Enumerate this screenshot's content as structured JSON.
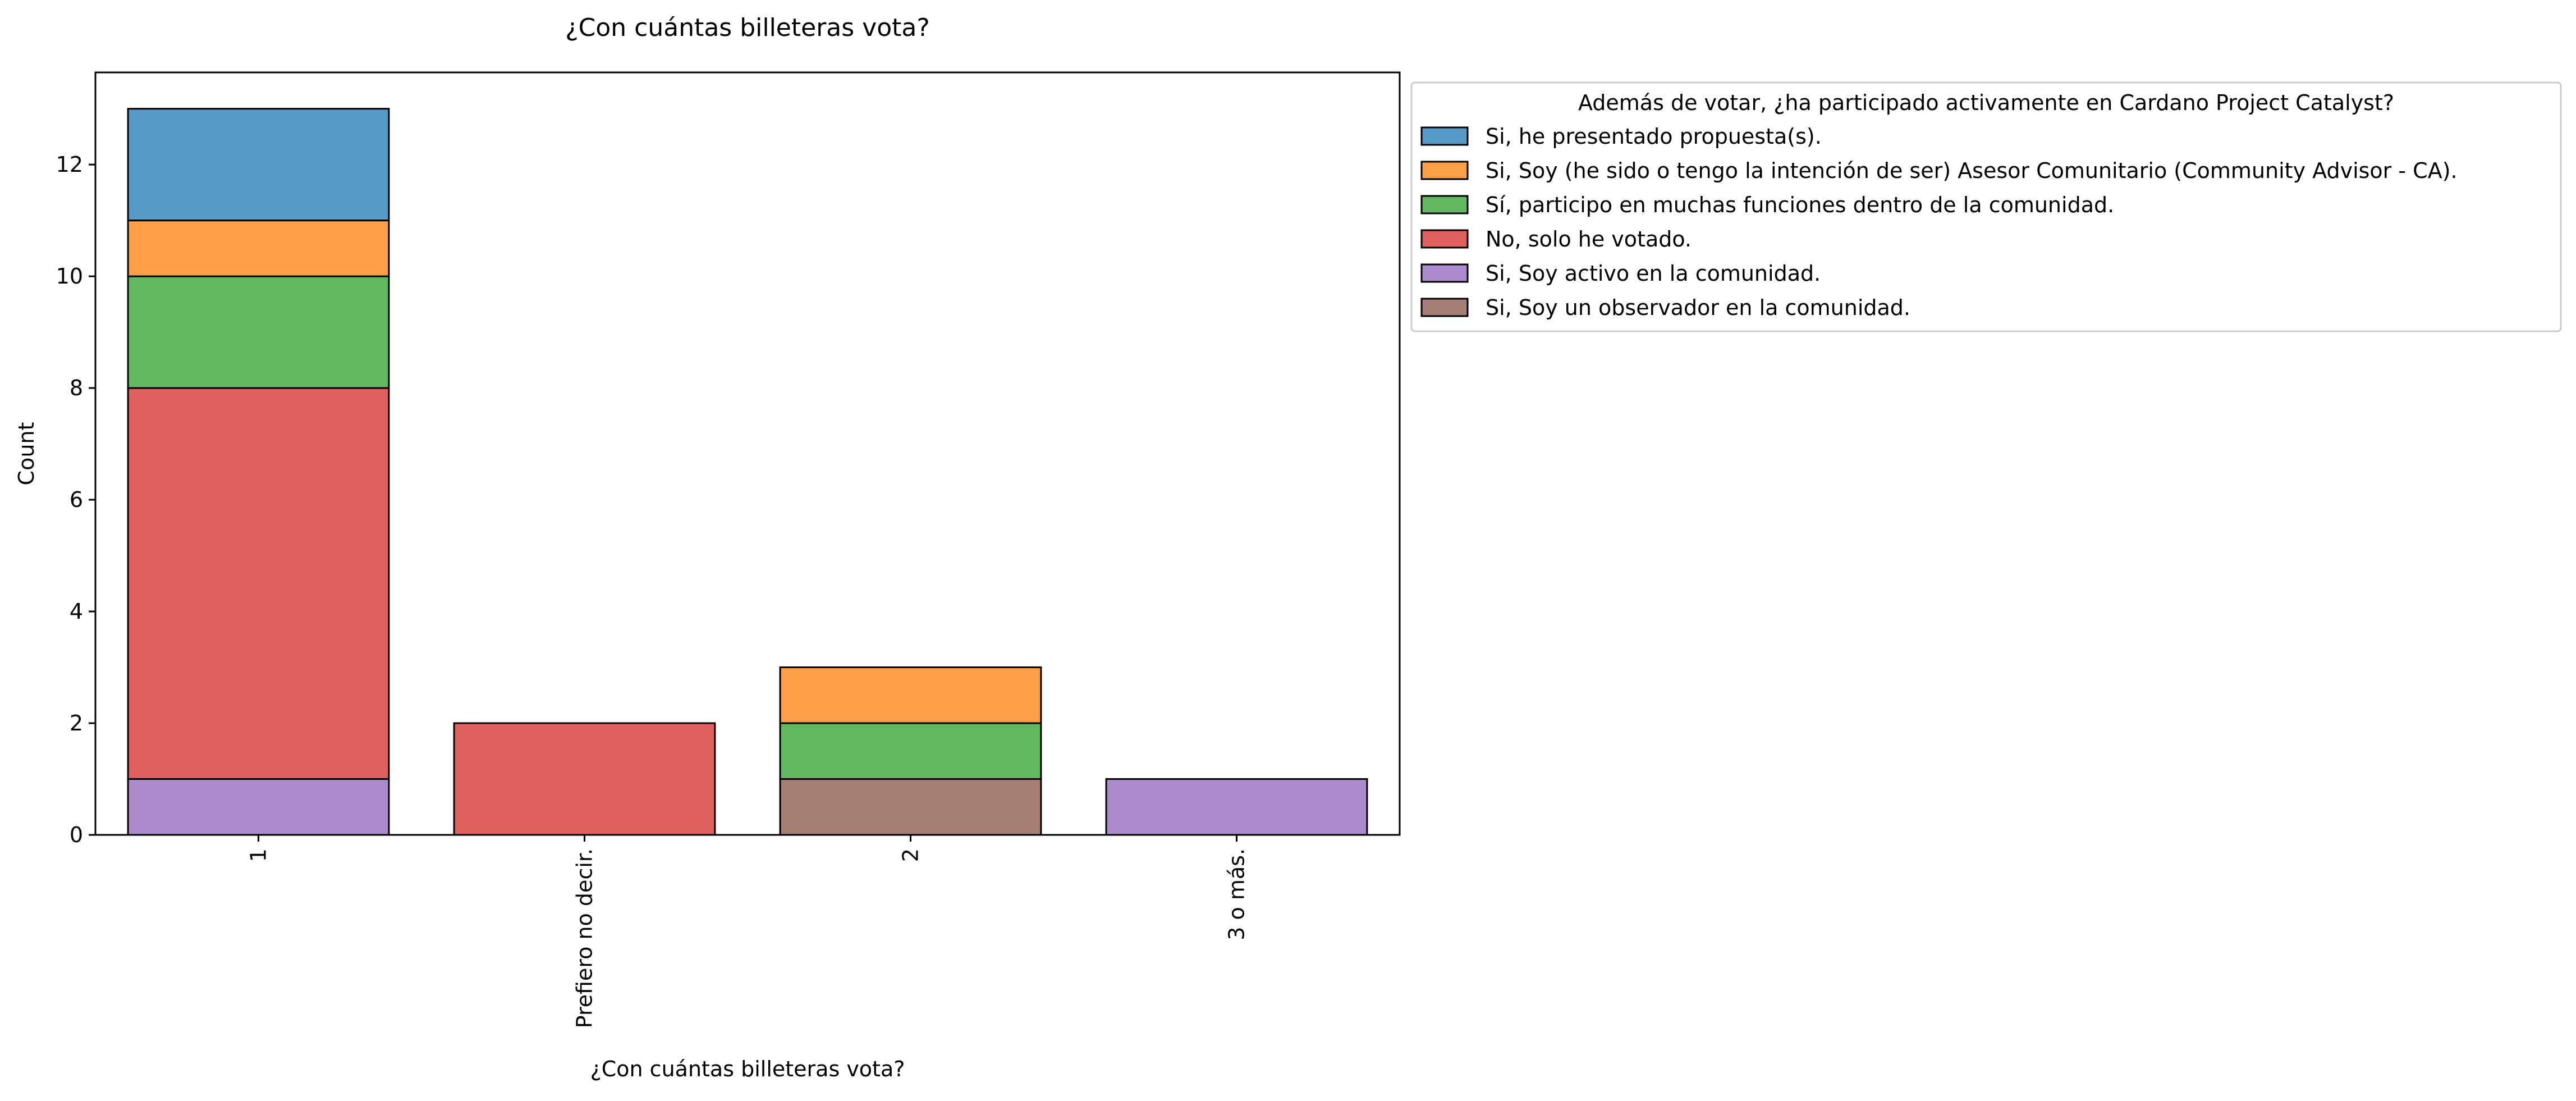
{
  "chart_data": {
    "type": "bar",
    "stacked": true,
    "title": "¿Con cuántas billeteras vota?",
    "xlabel": "¿Con cuántas billeteras vota?",
    "ylabel": "Count",
    "categories": [
      "1",
      "Prefiero no decir.",
      "2",
      "3 o más."
    ],
    "ylim": [
      0,
      13.65
    ],
    "yticks": [
      0,
      2,
      4,
      6,
      8,
      10,
      12
    ],
    "grid": false,
    "legend": {
      "placement": "outside-top-right",
      "title": "Además de votar, ¿ha participado activamente en Cardano Project Catalyst?"
    },
    "stack_order": [
      "Si, Soy un observador en la comunidad.",
      "Si, Soy activo en la comunidad.",
      "No, solo he votado.",
      "Sí, participo en muchas funciones dentro de la comunidad.",
      "Si, Soy (he sido o tengo la intención de ser) Asesor Comunitario (Community Advisor - CA).",
      "Si, he presentado propuesta(s)."
    ],
    "series": [
      {
        "name": "Si, he presentado propuesta(s).",
        "color": "#5799c7",
        "values": [
          2,
          0,
          0,
          0
        ]
      },
      {
        "name": "Si, Soy (he sido o tengo la intención de ser) Asesor Comunitario (Community Advisor - CA).",
        "color": "#ff9f4a",
        "values": [
          1,
          0,
          1,
          0
        ]
      },
      {
        "name": "Sí, participo en muchas funciones dentro de la comunidad.",
        "color": "#61b861",
        "values": [
          2,
          0,
          1,
          0
        ]
      },
      {
        "name": "No, solo he votado.",
        "color": "#e05f5f",
        "values": [
          7,
          2,
          0,
          0
        ]
      },
      {
        "name": "Si, Soy activo en la comunidad.",
        "color": "#ad8bcc",
        "values": [
          1,
          0,
          0,
          1
        ]
      },
      {
        "name": "Si, Soy un observador en la comunidad.",
        "color": "#a57e76",
        "values": [
          0,
          0,
          1,
          0
        ]
      }
    ]
  }
}
